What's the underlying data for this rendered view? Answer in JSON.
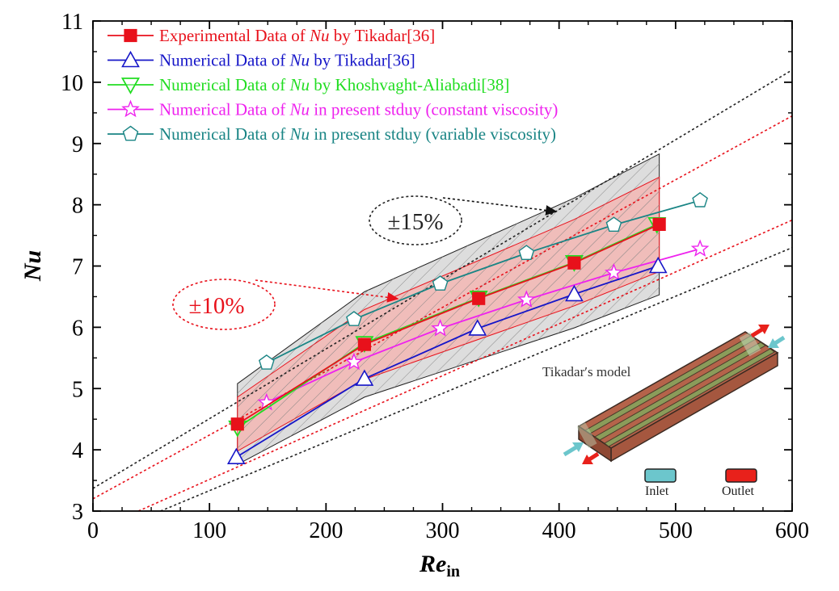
{
  "chart_data": {
    "type": "line",
    "xlabel": "Re",
    "xlabel_sub": "in",
    "ylabel": "Nu",
    "xlim": [
      0,
      600
    ],
    "ylim": [
      3,
      11
    ],
    "xticks": [
      0,
      100,
      200,
      300,
      400,
      500,
      600
    ],
    "yticks": [
      3,
      4,
      5,
      6,
      7,
      8,
      9,
      10,
      11
    ],
    "grid": false,
    "legend_placement": "top-left",
    "series": [
      {
        "name_parts": [
          "Experimental Data of ",
          "Nu",
          " by Tikadar[36]"
        ],
        "color": "#e8111b",
        "marker": "square-half",
        "x": [
          124,
          233,
          331,
          413,
          486
        ],
        "y": [
          4.42,
          5.72,
          6.47,
          7.05,
          7.68
        ]
      },
      {
        "name_parts": [
          "Numerical Data of ",
          "Nu",
          " by Tikadar[36]"
        ],
        "color": "#1616c8",
        "marker": "triangle-up",
        "x": [
          123,
          233,
          330,
          413,
          485
        ],
        "y": [
          3.88,
          5.16,
          5.98,
          6.54,
          7.0
        ]
      },
      {
        "name_parts": [
          "Numerical Data of ",
          "Nu",
          " by Khoshvaght-Aliabadi[38]"
        ],
        "color": "#22dd22",
        "marker": "triangle-down",
        "x": [
          124,
          233,
          331,
          413,
          484
        ],
        "y": [
          4.36,
          5.74,
          6.48,
          7.06,
          7.68
        ]
      },
      {
        "name_parts": [
          "Numerical Data of ",
          "Nu",
          " in present stduy (constant viscosity)"
        ],
        "color": "#ee22ee",
        "marker": "star",
        "x": [
          149,
          224,
          298,
          372,
          447,
          521
        ],
        "y": [
          4.77,
          5.43,
          5.98,
          6.45,
          6.89,
          7.28
        ]
      },
      {
        "name_parts": [
          "Numerical Data of ",
          "Nu",
          " in present stduy (variable viscosity)"
        ],
        "color": "#1a8585",
        "marker": "pentagon",
        "x": [
          149,
          224,
          298,
          372,
          447,
          521
        ],
        "y": [
          5.42,
          6.13,
          6.71,
          7.21,
          7.67,
          8.07
        ]
      }
    ],
    "bands": [
      {
        "label": "±15%",
        "color": "#222222",
        "fill": "#d9d9d9",
        "upper_x": [
          124,
          233,
          413,
          486
        ],
        "upper_y": [
          5.08,
          6.58,
          8.11,
          8.83
        ],
        "lower_x": [
          124,
          233,
          413,
          486
        ],
        "lower_y": [
          3.76,
          4.86,
          5.99,
          6.53
        ],
        "upper_ext": [
          [
            0,
            3.37
          ],
          [
            600,
            10.2
          ]
        ],
        "lower_ext": [
          [
            58,
            3
          ],
          [
            600,
            7.3
          ]
        ]
      },
      {
        "label": "±10%",
        "color": "#e8111b",
        "fill": "#f5b2ae",
        "upper_x": [
          124,
          233,
          413,
          486
        ],
        "upper_y": [
          4.86,
          6.29,
          7.76,
          8.45
        ],
        "lower_x": [
          124,
          233,
          413,
          486
        ],
        "lower_y": [
          3.98,
          5.15,
          6.35,
          6.91
        ],
        "upper_ext": [
          [
            0,
            3.2
          ],
          [
            600,
            9.45
          ]
        ],
        "lower_ext": [
          [
            39,
            3
          ],
          [
            600,
            7.75
          ]
        ]
      }
    ],
    "inset": {
      "caption": "Tikadar′s model",
      "inlet_label": "Inlet",
      "outlet_label": "Outlet",
      "inlet_color": "#6cc6cc",
      "outlet_color": "#e8211b"
    }
  }
}
